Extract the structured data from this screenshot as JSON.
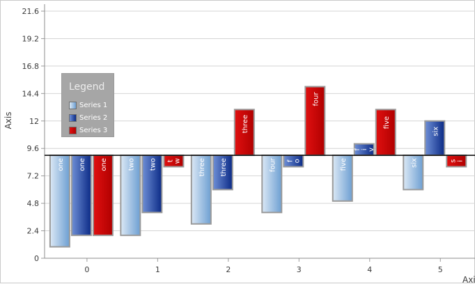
{
  "colors": {
    "series1_light": "#dbe8f5",
    "series1_dark": "#6d9fd2",
    "series2_light": "#6e8fd6",
    "series2_dark": "#0b2a86",
    "series3_light": "#e01010",
    "series3_dark": "#b00000",
    "gridline": "#d4d4d4",
    "baseline": "#000000"
  },
  "chart_data": {
    "type": "bar",
    "origin": 9,
    "ylim": [
      0,
      21.6
    ],
    "xlim": [
      -0.6,
      5.5
    ],
    "ylabel": "Axis",
    "xlabel": "Axis",
    "yticks": [
      "0",
      "2.4",
      "4.8",
      "7.2",
      "9.6",
      "12",
      "14.4",
      "16.8",
      "19.2",
      "21.6"
    ],
    "xticks": [
      "0",
      "1",
      "2",
      "3",
      "4",
      "5"
    ],
    "legend": {
      "title": "Legend",
      "position": "left"
    },
    "series": [
      {
        "name": "Series 1",
        "style": "series1",
        "values": [
          1,
          2,
          3,
          4,
          5,
          6
        ],
        "labels": [
          "one",
          "two",
          "three",
          "four",
          "five",
          "six"
        ]
      },
      {
        "name": "Series 2",
        "style": "series2",
        "values": [
          2,
          4,
          6,
          8,
          10,
          12
        ],
        "labels": [
          "one",
          "two",
          "three",
          "f o",
          "f i v",
          "six"
        ]
      },
      {
        "name": "Series 3",
        "style": "series3",
        "values": [
          2,
          8,
          13,
          15,
          13,
          8
        ],
        "labels": [
          "one",
          "t w",
          "three",
          "four",
          "five",
          "s i"
        ]
      }
    ]
  }
}
